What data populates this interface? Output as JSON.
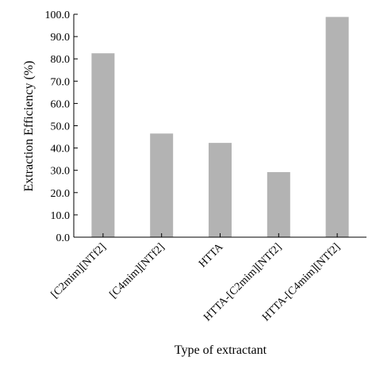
{
  "chart_data": {
    "type": "bar",
    "title": "",
    "xlabel": "Type of extractant",
    "ylabel": "Extraction Efficiency (%)",
    "categories": [
      "[C2mim][NTf2]",
      "[C4mim][NTf2]",
      "HTTA",
      "HTTA-[C2mim][NTf2]",
      "HTTA-[C4mim][NTf2]"
    ],
    "values": [
      82.5,
      46.5,
      42.3,
      29.2,
      98.8
    ],
    "ylim": [
      0,
      100
    ],
    "yticks": [
      "0.0",
      "10.0",
      "20.0",
      "30.0",
      "40.0",
      "50.0",
      "60.0",
      "70.0",
      "80.0",
      "90.0",
      "100.0"
    ],
    "bar_color": "#b3b3b3",
    "grid": false,
    "legend": "none"
  }
}
